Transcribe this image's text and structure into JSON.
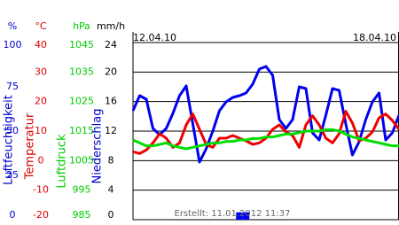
{
  "chart_data": {
    "type": "line",
    "start_label": "12.04.10",
    "end_label": "18.04.10",
    "footer": "Erstellt: 11.01.2012 11:37",
    "axes": [
      {
        "unit": "%",
        "label": "Luftfeuchtigkeit",
        "color": "#0000cc",
        "lim": [
          0,
          100
        ],
        "ticks": [
          0,
          25,
          50,
          75,
          100
        ]
      },
      {
        "unit": "°C",
        "label": "Temperatur",
        "color": "#dd0000",
        "lim": [
          -20,
          40
        ],
        "ticks": [
          -20,
          -10,
          0,
          10,
          20,
          30,
          40
        ]
      },
      {
        "unit": "hPa",
        "label": "Luftdruck",
        "color": "#00cc00",
        "lim": [
          985,
          1045
        ],
        "ticks": [
          985,
          995,
          1005,
          1015,
          1025,
          1035,
          1045
        ]
      },
      {
        "unit": "mm/h",
        "label": "Niederschlag",
        "color": "#0000cc",
        "lim": [
          0,
          24
        ],
        "ticks": [
          0,
          4,
          8,
          12,
          16,
          20,
          24
        ]
      }
    ],
    "grid_axis": 1,
    "series": [
      {
        "axis": 0,
        "color": "#0000ee",
        "values": [
          61.5,
          70,
          68,
          51.5,
          48,
          51.5,
          60,
          70,
          75.5,
          54,
          32.5,
          40,
          50,
          61.5,
          66.5,
          69,
          70,
          71.5,
          76.5,
          85,
          86.5,
          81.5,
          56.5,
          51.5,
          56.5,
          75,
          74,
          49,
          45,
          59,
          74,
          73,
          54,
          36.5,
          44,
          56.5,
          66.5,
          71.5,
          45,
          49,
          59
        ]
      },
      {
        "axis": 1,
        "color": "#ee0000",
        "values": [
          3,
          2.4,
          3.6,
          6,
          9.1,
          7.6,
          4.5,
          6,
          12.1,
          15.8,
          10.6,
          5.5,
          4.5,
          7.6,
          7.6,
          8.5,
          7.6,
          6.7,
          5.5,
          6,
          7.6,
          10.6,
          12.1,
          9.7,
          8.5,
          4.5,
          12.1,
          15.2,
          12.1,
          7.6,
          6,
          9.1,
          16.7,
          12.7,
          6.7,
          7.6,
          9.7,
          14.5,
          15.8,
          13.6,
          10.6
        ]
      },
      {
        "axis": 2,
        "color": "#00dd00",
        "values": [
          1012,
          1011,
          1010,
          1010,
          1010.5,
          1011,
          1010,
          1009.5,
          1009,
          1009.5,
          1010,
          1010.5,
          1011,
          1011,
          1011.5,
          1011.5,
          1012,
          1012,
          1012.5,
          1012.5,
          1013,
          1013,
          1013.5,
          1014,
          1014,
          1014.5,
          1015,
          1015,
          1015,
          1015.5,
          1015.5,
          1015,
          1014,
          1013,
          1012.5,
          1012,
          1011.5,
          1011,
          1010.5,
          1010,
          1010
        ]
      },
      {
        "axis": 3,
        "color": "#0000ee",
        "bars": true,
        "values": [
          0,
          0,
          0,
          0,
          0,
          0,
          0,
          0,
          0,
          0,
          0,
          0,
          0,
          0,
          0,
          0,
          1,
          1,
          0,
          0,
          0,
          0,
          0,
          0,
          0,
          0,
          0,
          0,
          0,
          0,
          0,
          0,
          0,
          0,
          0,
          0,
          0,
          0,
          0,
          0,
          0
        ]
      }
    ]
  }
}
